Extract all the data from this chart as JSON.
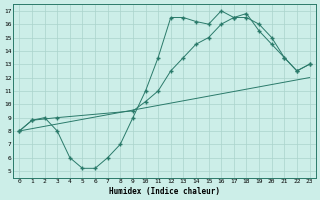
{
  "background_color": "#cceee8",
  "grid_color": "#aad4cc",
  "line_color": "#2a7a6a",
  "marker": "+",
  "xlabel": "Humidex (Indice chaleur)",
  "xlim": [
    -0.5,
    23.5
  ],
  "ylim": [
    4.5,
    17.5
  ],
  "xticks": [
    0,
    1,
    2,
    3,
    4,
    5,
    6,
    7,
    8,
    9,
    10,
    11,
    12,
    13,
    14,
    15,
    16,
    17,
    18,
    19,
    20,
    21,
    22,
    23
  ],
  "yticks": [
    5,
    6,
    7,
    8,
    9,
    10,
    11,
    12,
    13,
    14,
    15,
    16,
    17
  ],
  "line1_x": [
    0,
    1,
    2,
    3,
    4,
    5,
    6,
    7,
    8,
    9,
    10,
    11,
    12,
    13,
    14,
    15,
    16,
    17,
    18,
    19,
    20,
    21,
    22,
    23
  ],
  "line1_y": [
    8.0,
    8.8,
    9.0,
    8.0,
    6.0,
    5.2,
    5.2,
    6.0,
    7.0,
    9.0,
    11.0,
    13.5,
    16.5,
    16.5,
    16.2,
    16.0,
    17.0,
    16.5,
    16.5,
    16.0,
    15.0,
    13.5,
    12.5,
    13.0
  ],
  "line2_x": [
    0,
    1,
    3,
    9,
    10,
    11,
    12,
    13,
    14,
    15,
    16,
    17,
    18,
    19,
    20,
    21,
    22,
    23
  ],
  "line2_y": [
    8.0,
    8.8,
    9.0,
    9.5,
    10.2,
    11.0,
    12.5,
    13.5,
    14.5,
    15.0,
    16.0,
    16.5,
    16.8,
    15.5,
    14.5,
    13.5,
    12.5,
    13.0
  ],
  "line3_x": [
    0,
    23
  ],
  "line3_y": [
    8.0,
    12.0
  ]
}
